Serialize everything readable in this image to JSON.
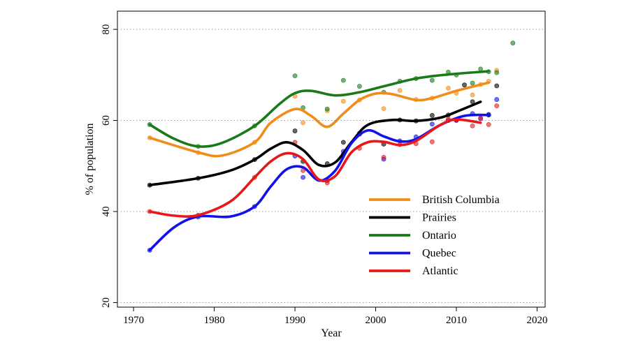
{
  "chart_data": {
    "type": "scatter",
    "title": "",
    "xlabel": "Year",
    "ylabel": "% of population",
    "xlim": [
      1968,
      2021
    ],
    "ylim": [
      19,
      84
    ],
    "xticks": [
      1970,
      1980,
      1990,
      2000,
      2010,
      2020
    ],
    "yticks": [
      20,
      40,
      60,
      80
    ],
    "grid": "horizontal-dotted",
    "legend_position": "lower-right",
    "series": [
      {
        "name": "British Columbia",
        "color": "#f28c18",
        "points": [
          [
            1972,
            56.2
          ],
          [
            1978,
            52.9
          ],
          [
            1985,
            55.2
          ],
          [
            1990,
            65.3
          ],
          [
            1991,
            59.5
          ],
          [
            1994,
            62.1
          ],
          [
            1996,
            64.2
          ],
          [
            1998,
            64.5
          ],
          [
            2001,
            62.6
          ],
          [
            2003,
            66.6
          ],
          [
            2005,
            64.6
          ],
          [
            2007,
            64.9
          ],
          [
            2009,
            67.1
          ],
          [
            2010,
            66.0
          ],
          [
            2012,
            65.6
          ],
          [
            2013,
            67.9
          ],
          [
            2014,
            68.6
          ],
          [
            2015,
            71.0
          ]
        ],
        "curve": [
          [
            1972,
            56.2
          ],
          [
            1978,
            53.0
          ],
          [
            1981,
            52.3
          ],
          [
            1985,
            55.2
          ],
          [
            1987,
            59.5
          ],
          [
            1990,
            62.5
          ],
          [
            1992,
            61.0
          ],
          [
            1994,
            58.6
          ],
          [
            1996,
            61.5
          ],
          [
            1998,
            64.5
          ],
          [
            2000,
            65.9
          ],
          [
            2002,
            65.8
          ],
          [
            2005,
            64.5
          ],
          [
            2007,
            64.9
          ],
          [
            2010,
            66.5
          ],
          [
            2014,
            68.3
          ]
        ]
      },
      {
        "name": "Prairies",
        "color": "#000000",
        "points": [
          [
            1972,
            45.8
          ],
          [
            1978,
            47.3
          ],
          [
            1985,
            51.4
          ],
          [
            1990,
            57.7
          ],
          [
            1991,
            51.0
          ],
          [
            1994,
            50.5
          ],
          [
            1996,
            55.2
          ],
          [
            1998,
            57.0
          ],
          [
            2001,
            54.8
          ],
          [
            2003,
            60.1
          ],
          [
            2005,
            59.9
          ],
          [
            2007,
            61.1
          ],
          [
            2009,
            61.2
          ],
          [
            2010,
            60.2
          ],
          [
            2011,
            67.8
          ],
          [
            2012,
            64.1
          ],
          [
            2014,
            61.2
          ],
          [
            2015,
            67.6
          ]
        ],
        "curve": [
          [
            1972,
            45.8
          ],
          [
            1978,
            47.3
          ],
          [
            1982,
            49.0
          ],
          [
            1985,
            51.4
          ],
          [
            1987,
            53.8
          ],
          [
            1989,
            55.2
          ],
          [
            1991,
            53.5
          ],
          [
            1993,
            50.2
          ],
          [
            1995,
            50.8
          ],
          [
            1997,
            55.2
          ],
          [
            1999,
            59.0
          ],
          [
            2002,
            60.1
          ],
          [
            2005,
            59.9
          ],
          [
            2008,
            60.6
          ],
          [
            2010,
            61.9
          ],
          [
            2013,
            64.1
          ]
        ]
      },
      {
        "name": "Ontario",
        "color": "#1a7a1a",
        "points": [
          [
            1972,
            59.1
          ],
          [
            1978,
            54.3
          ],
          [
            1985,
            58.8
          ],
          [
            1990,
            69.8
          ],
          [
            1991,
            62.8
          ],
          [
            1994,
            62.5
          ],
          [
            1996,
            68.8
          ],
          [
            1998,
            67.5
          ],
          [
            2001,
            66.2
          ],
          [
            2003,
            68.6
          ],
          [
            2005,
            69.2
          ],
          [
            2007,
            68.8
          ],
          [
            2009,
            70.6
          ],
          [
            2010,
            70.0
          ],
          [
            2012,
            68.2
          ],
          [
            2013,
            71.3
          ],
          [
            2014,
            70.7
          ],
          [
            2015,
            70.5
          ],
          [
            2017,
            77.0
          ]
        ],
        "curve": [
          [
            1972,
            59.1
          ],
          [
            1975,
            56.0
          ],
          [
            1978,
            54.3
          ],
          [
            1981,
            55.1
          ],
          [
            1985,
            58.8
          ],
          [
            1988,
            63.5
          ],
          [
            1990,
            66.0
          ],
          [
            1992,
            66.5
          ],
          [
            1995,
            65.5
          ],
          [
            1998,
            66.2
          ],
          [
            2001,
            67.5
          ],
          [
            2005,
            69.2
          ],
          [
            2009,
            70.1
          ],
          [
            2014,
            70.8
          ]
        ]
      },
      {
        "name": "Quebec",
        "color": "#1111ee",
        "points": [
          [
            1972,
            31.5
          ],
          [
            1978,
            38.8
          ],
          [
            1985,
            41.1
          ],
          [
            1990,
            52.2
          ],
          [
            1991,
            47.5
          ],
          [
            1994,
            46.8
          ],
          [
            1996,
            53.2
          ],
          [
            1998,
            57.2
          ],
          [
            2001,
            51.5
          ],
          [
            2003,
            55.5
          ],
          [
            2005,
            56.4
          ],
          [
            2007,
            59.2
          ],
          [
            2009,
            60.0
          ],
          [
            2010,
            60.0
          ],
          [
            2012,
            61.5
          ],
          [
            2013,
            60.4
          ],
          [
            2014,
            61.3
          ],
          [
            2015,
            64.6
          ]
        ],
        "curve": [
          [
            1972,
            31.5
          ],
          [
            1975,
            36.5
          ],
          [
            1978,
            38.9
          ],
          [
            1982,
            38.9
          ],
          [
            1985,
            41.1
          ],
          [
            1987,
            45.5
          ],
          [
            1989,
            49.3
          ],
          [
            1991,
            49.7
          ],
          [
            1993,
            46.8
          ],
          [
            1995,
            49.0
          ],
          [
            1997,
            55.0
          ],
          [
            1999,
            57.8
          ],
          [
            2001,
            56.5
          ],
          [
            2003,
            55.4
          ],
          [
            2005,
            55.9
          ],
          [
            2008,
            59.0
          ],
          [
            2011,
            61.0
          ],
          [
            2014,
            61.2
          ]
        ]
      },
      {
        "name": "Atlantic",
        "color": "#e81818",
        "points": [
          [
            1972,
            40.0
          ],
          [
            1978,
            39.2
          ],
          [
            1985,
            47.5
          ],
          [
            1990,
            55.2
          ],
          [
            1991,
            49.0
          ],
          [
            1994,
            46.3
          ],
          [
            1996,
            52.6
          ],
          [
            1998,
            53.9
          ],
          [
            2001,
            51.9
          ],
          [
            2003,
            54.7
          ],
          [
            2005,
            54.9
          ],
          [
            2007,
            55.3
          ],
          [
            2009,
            60.3
          ],
          [
            2010,
            60.1
          ],
          [
            2012,
            58.8
          ],
          [
            2013,
            60.5
          ],
          [
            2014,
            59.1
          ],
          [
            2015,
            63.2
          ]
        ],
        "curve": [
          [
            1972,
            40.0
          ],
          [
            1975,
            39.1
          ],
          [
            1978,
            39.2
          ],
          [
            1982,
            42.2
          ],
          [
            1985,
            47.5
          ],
          [
            1987,
            51.0
          ],
          [
            1989,
            52.8
          ],
          [
            1991,
            51.5
          ],
          [
            1993,
            47.0
          ],
          [
            1995,
            47.8
          ],
          [
            1997,
            53.0
          ],
          [
            1999,
            55.2
          ],
          [
            2001,
            55.3
          ],
          [
            2003,
            54.6
          ],
          [
            2005,
            55.5
          ],
          [
            2008,
            59.0
          ],
          [
            2010,
            60.2
          ],
          [
            2013,
            59.5
          ]
        ]
      }
    ]
  }
}
